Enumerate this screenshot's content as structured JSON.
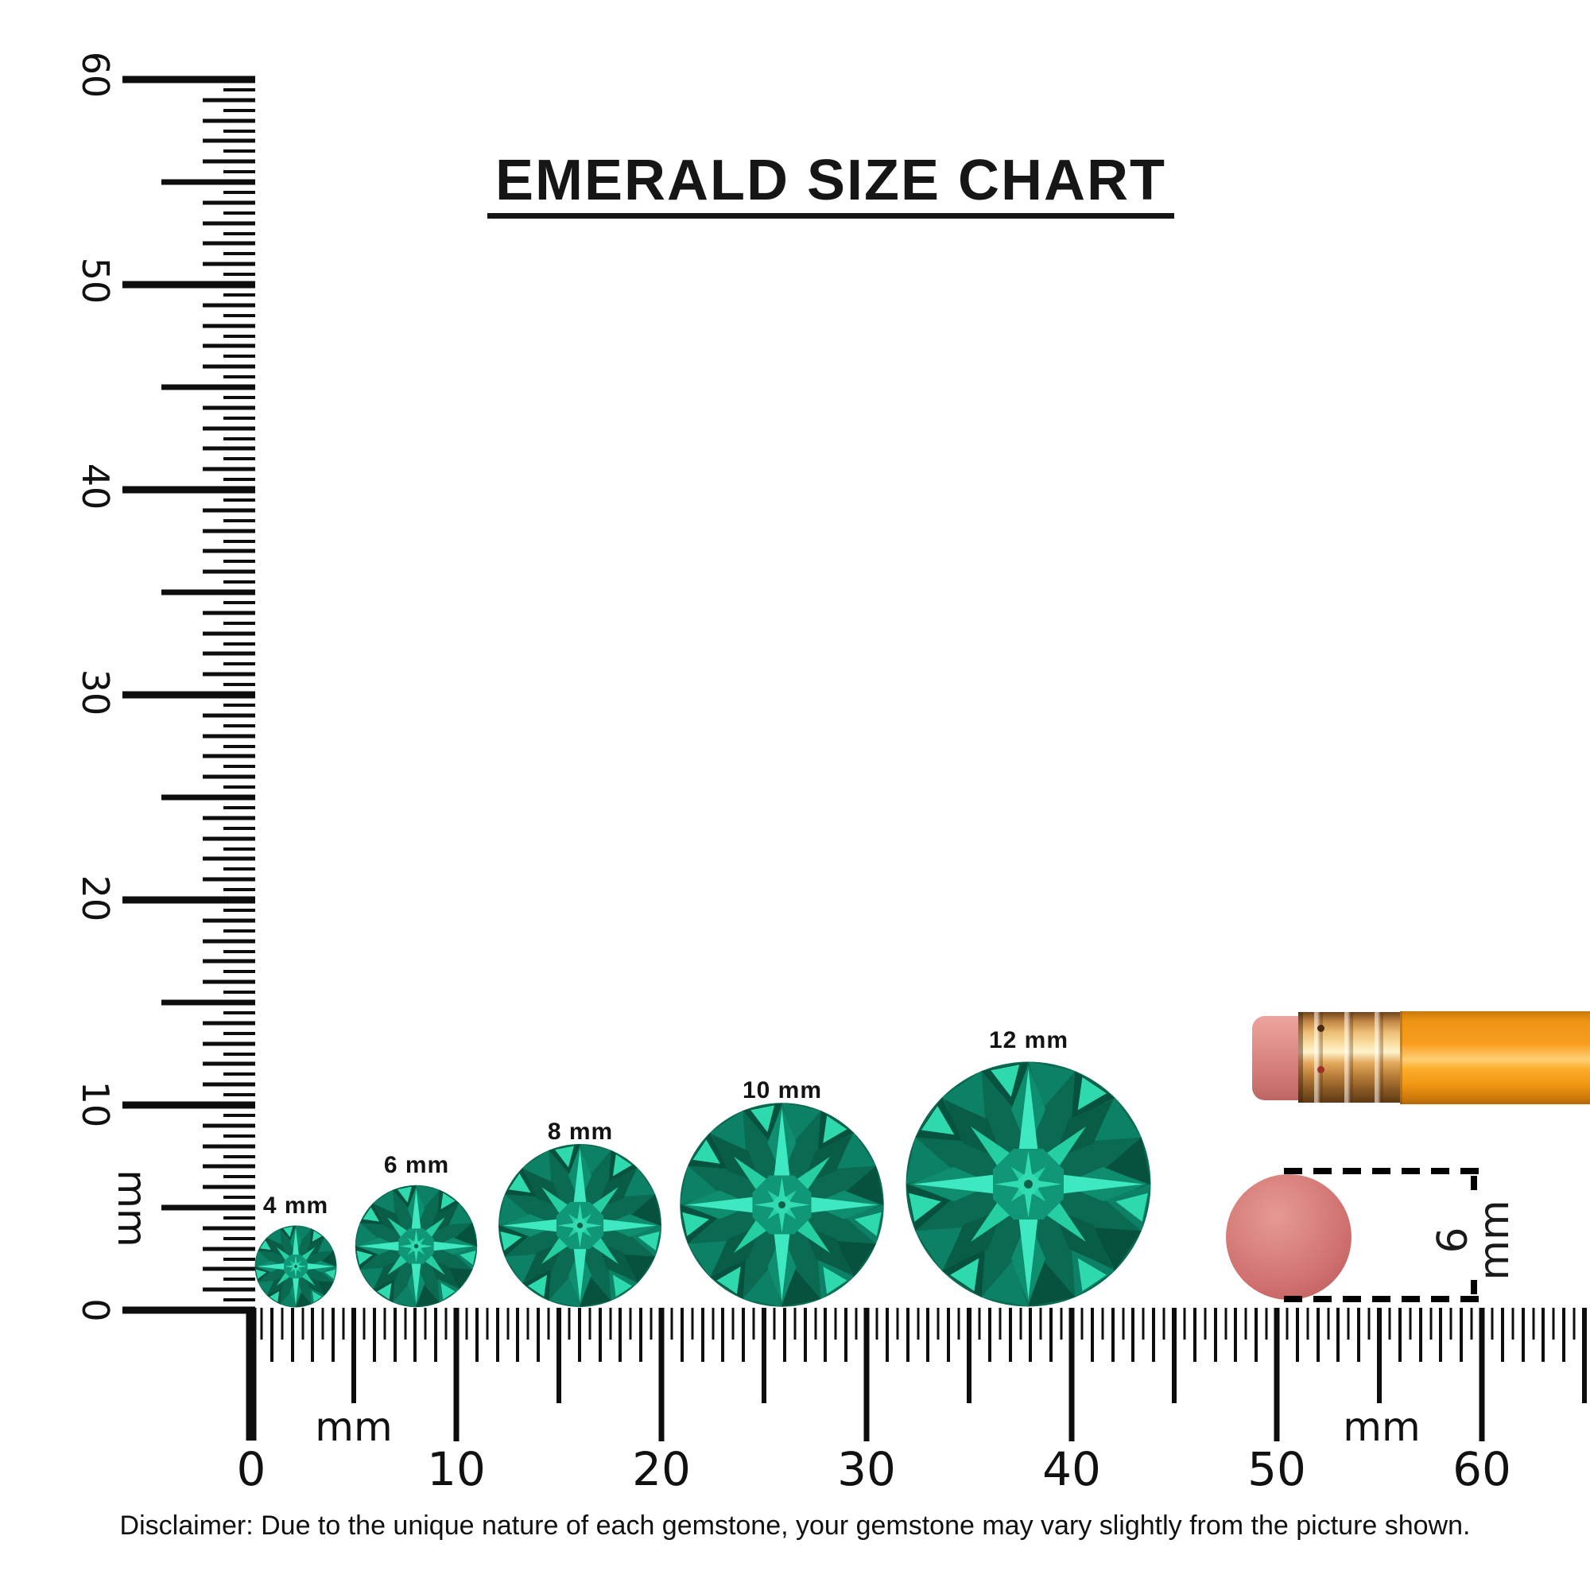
{
  "title": "EMERALD SIZE CHART",
  "gems": [
    {
      "label": "4 mm",
      "size_mm": 4
    },
    {
      "label": "6 mm",
      "size_mm": 6
    },
    {
      "label": "8 mm",
      "size_mm": 8
    },
    {
      "label": "10 mm",
      "size_mm": 10
    },
    {
      "label": "12 mm",
      "size_mm": 12
    }
  ],
  "vertical_ruler": {
    "unit": "mm",
    "labels": [
      "0",
      "10",
      "20",
      "30",
      "40",
      "50",
      "60"
    ]
  },
  "horizontal_ruler": {
    "unit_left": "mm",
    "unit_right": "mm",
    "labels": [
      "0",
      "10",
      "20",
      "30",
      "40",
      "50",
      "60"
    ]
  },
  "reference": {
    "dimension_label": "6 mm"
  },
  "graphics": {
    "pencil": "pencil-graphic",
    "eraser_disc": "eraser-disc-graphic",
    "gem": "emerald-gem-graphic"
  },
  "disclaimer": "Disclaimer: Due to the unique nature of each gemstone, your gemstone may vary slightly from the picture shown.",
  "colors": {
    "ink": "#111111",
    "pencil_body": "#f89e1e",
    "ferrule_gold": "#ecbc74",
    "eraser_pink": "#d57f7c",
    "disc_pink": "#cf6f6d",
    "gem_palette": {
      "base": "#0b6b52",
      "rim_light": "#0d8165",
      "rim_dark": "#07523e",
      "rim_sparkle": "#2fd9ae",
      "kite_light": "#0e8e6e",
      "kite_dark": "#095d46",
      "star_main": "#3ee8c0",
      "star_diag": "#25cfa2",
      "table": "#0f9778",
      "core_bright": "#31dcb2",
      "core_dark": "#0a6148"
    }
  }
}
